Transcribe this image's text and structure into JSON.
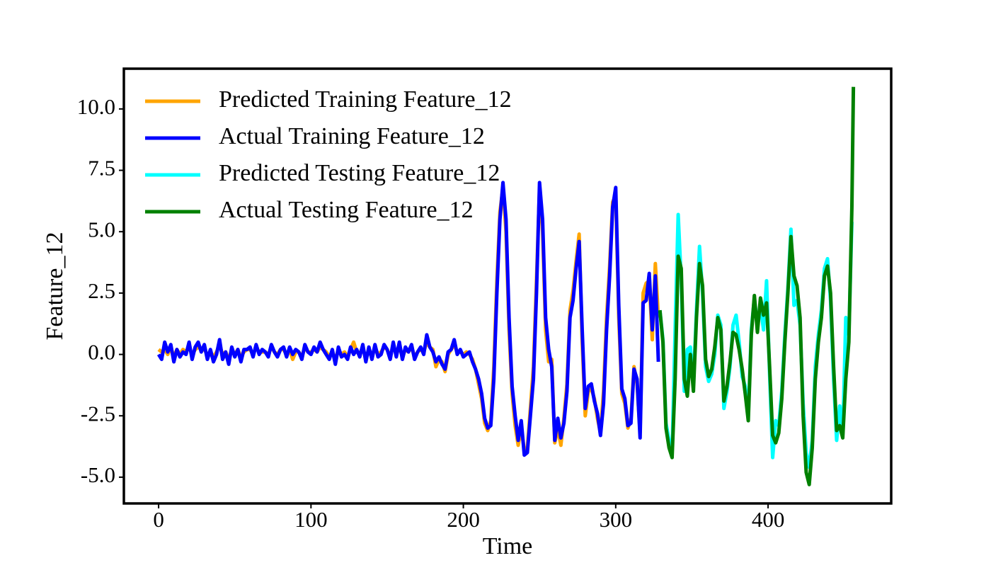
{
  "chart_data": {
    "type": "line",
    "xlabel": "Time",
    "ylabel": "Feature_12",
    "xlim": [
      -22.8,
      480.8
    ],
    "ylim": [
      -6.07,
      11.64
    ],
    "xticks": [
      0,
      100,
      200,
      300,
      400
    ],
    "yticks": [
      {
        "value": 10,
        "label": "10.0"
      },
      7.5,
      {
        "value": 5,
        "label": "5.0"
      },
      2.5,
      {
        "value": 0,
        "label": "0.0"
      },
      -2.5,
      {
        "value": -5,
        "label": "-5.0"
      }
    ],
    "grid": false,
    "legend": "upper left",
    "series": [
      {
        "name": "Predicted Training Feature_12",
        "color": "#ffa500",
        "x": [
          0,
          2,
          4,
          6,
          8,
          10,
          12,
          14,
          16,
          18,
          20,
          22,
          24,
          26,
          28,
          30,
          32,
          34,
          36,
          38,
          40,
          42,
          44,
          46,
          48,
          50,
          52,
          54,
          56,
          58,
          60,
          62,
          64,
          66,
          68,
          70,
          72,
          74,
          76,
          78,
          80,
          82,
          84,
          86,
          88,
          90,
          92,
          94,
          96,
          98,
          100,
          102,
          104,
          106,
          108,
          110,
          112,
          114,
          116,
          118,
          120,
          122,
          124,
          126,
          128,
          130,
          132,
          134,
          136,
          138,
          140,
          142,
          144,
          146,
          148,
          150,
          152,
          154,
          156,
          158,
          160,
          162,
          164,
          166,
          168,
          170,
          172,
          174,
          176,
          178,
          180,
          182,
          184,
          186,
          188,
          190,
          192,
          194,
          196,
          198,
          200,
          202,
          204,
          206,
          208,
          210,
          212,
          214,
          216,
          218,
          220,
          222,
          224,
          226,
          228,
          230,
          232,
          234,
          236,
          238,
          240,
          242,
          244,
          246,
          248,
          250,
          252,
          254,
          256,
          258,
          260,
          262,
          264,
          266,
          268,
          270,
          272,
          274,
          276,
          278,
          280,
          282,
          284,
          286,
          288,
          290,
          292,
          294,
          296,
          298,
          300,
          302,
          304,
          306,
          308,
          310,
          312,
          314,
          316,
          318,
          320,
          322,
          324,
          326,
          328
        ],
        "values": [
          0.2,
          0.1,
          0.2,
          0.0,
          0.3,
          -0.1,
          0.2,
          0.0,
          0.2,
          0.1,
          0.3,
          0.0,
          0.2,
          0.3,
          0.2,
          0.2,
          0.0,
          0.1,
          -0.1,
          0.1,
          0.4,
          0.0,
          0.1,
          -0.2,
          0.2,
          0.0,
          0.2,
          -0.1,
          0.1,
          0.2,
          0.2,
          0.0,
          0.3,
          0.1,
          0.1,
          0.1,
          0.0,
          0.3,
          0.1,
          0.0,
          0.2,
          0.2,
          0.0,
          0.2,
          -0.2,
          0.1,
          0.1,
          -0.1,
          0.3,
          0.1,
          0.1,
          0.2,
          0.1,
          0.3,
          0.2,
          0.1,
          -0.1,
          0.1,
          -0.2,
          0.2,
          0.0,
          0.1,
          -0.1,
          0.2,
          0.5,
          0.1,
          0.0,
          0.3,
          -0.2,
          0.2,
          -0.1,
          0.3,
          0.0,
          0.1,
          0.3,
          0.2,
          -0.1,
          0.4,
          0.0,
          0.3,
          -0.1,
          0.2,
          0.1,
          0.3,
          -0.1,
          0.1,
          0.2,
          0.1,
          0.5,
          0.3,
          0.2,
          -0.5,
          -0.2,
          -0.3,
          -0.7,
          0.0,
          0.2,
          0.4,
          0.1,
          0.1,
          0.0,
          0.1,
          0.0,
          -0.2,
          -0.6,
          -1.2,
          -1.8,
          -2.8,
          -3.1,
          -2.7,
          -0.5,
          3.0,
          5.8,
          6.8,
          5.0,
          1.0,
          -1.6,
          -2.9,
          -3.7,
          -3.0,
          -3.9,
          -3.8,
          -2.2,
          -0.5,
          3.0,
          6.8,
          5.0,
          1.0,
          -0.3,
          -0.2,
          -3.6,
          -3.0,
          -3.7,
          -2.6,
          -1.2,
          1.8,
          2.6,
          3.8,
          4.9,
          0.5,
          -2.5,
          -1.5,
          -1.4,
          -1.8,
          -2.6,
          -3.2,
          -1.5,
          1.5,
          3.6,
          6.2,
          6.5,
          1.5,
          -1.6,
          -2.0,
          -3.0,
          -2.6,
          -0.5,
          -1.2,
          -3.2,
          2.5,
          2.9,
          3.0,
          0.6,
          3.7,
          1.5
        ]
      },
      {
        "name": "Actual Training Feature_12",
        "color": "#0000ff",
        "x": [
          0,
          2,
          4,
          6,
          8,
          10,
          12,
          14,
          16,
          18,
          20,
          22,
          24,
          26,
          28,
          30,
          32,
          34,
          36,
          38,
          40,
          42,
          44,
          46,
          48,
          50,
          52,
          54,
          56,
          58,
          60,
          62,
          64,
          66,
          68,
          70,
          72,
          74,
          76,
          78,
          80,
          82,
          84,
          86,
          88,
          90,
          92,
          94,
          96,
          98,
          100,
          102,
          104,
          106,
          108,
          110,
          112,
          114,
          116,
          118,
          120,
          122,
          124,
          126,
          128,
          130,
          132,
          134,
          136,
          138,
          140,
          142,
          144,
          146,
          148,
          150,
          152,
          154,
          156,
          158,
          160,
          162,
          164,
          166,
          168,
          170,
          172,
          174,
          176,
          178,
          180,
          182,
          184,
          186,
          188,
          190,
          192,
          194,
          196,
          198,
          200,
          202,
          204,
          206,
          208,
          210,
          212,
          214,
          216,
          218,
          220,
          222,
          224,
          226,
          228,
          230,
          232,
          234,
          236,
          238,
          240,
          242,
          244,
          246,
          248,
          250,
          252,
          254,
          256,
          258,
          260,
          262,
          264,
          266,
          268,
          270,
          272,
          274,
          276,
          278,
          280,
          282,
          284,
          286,
          288,
          290,
          292,
          294,
          296,
          298,
          300,
          302,
          304,
          306,
          308,
          310,
          312,
          314,
          316,
          318,
          320,
          322,
          324,
          326,
          328
        ],
        "values": [
          0.0,
          -0.2,
          0.5,
          0.1,
          0.4,
          -0.3,
          0.2,
          -0.1,
          0.1,
          0.0,
          0.5,
          -0.2,
          0.3,
          0.5,
          0.1,
          0.4,
          -0.2,
          0.2,
          -0.3,
          0.0,
          0.6,
          -0.2,
          0.1,
          -0.4,
          0.3,
          -0.1,
          0.2,
          -0.3,
          0.2,
          0.2,
          0.3,
          -0.1,
          0.4,
          0.0,
          0.2,
          0.1,
          -0.1,
          0.4,
          0.1,
          -0.1,
          0.2,
          0.3,
          -0.1,
          0.3,
          0.0,
          0.2,
          0.1,
          -0.2,
          0.4,
          0.1,
          0.0,
          0.3,
          0.1,
          0.5,
          0.2,
          0.0,
          -0.2,
          0.2,
          -0.4,
          0.3,
          -0.1,
          0.0,
          -0.2,
          0.3,
          0.0,
          0.2,
          -0.1,
          0.4,
          -0.3,
          0.3,
          -0.2,
          0.4,
          -0.1,
          0.0,
          0.4,
          0.2,
          -0.2,
          0.5,
          -0.1,
          0.5,
          -0.2,
          0.3,
          0.1,
          0.4,
          -0.2,
          0.1,
          0.3,
          0.0,
          0.8,
          0.3,
          0.1,
          -0.3,
          -0.1,
          -0.4,
          -0.6,
          0.1,
          0.2,
          0.6,
          0.0,
          0.2,
          -0.1,
          0.0,
          0.1,
          -0.3,
          -0.6,
          -1.0,
          -1.6,
          -2.6,
          -3.0,
          -2.9,
          -1.0,
          2.5,
          5.5,
          7.0,
          5.5,
          1.5,
          -1.3,
          -2.5,
          -3.5,
          -2.7,
          -4.1,
          -4.0,
          -2.5,
          -1.0,
          2.5,
          7.0,
          5.5,
          1.5,
          0.2,
          -0.5,
          -3.5,
          -2.6,
          -3.4,
          -2.8,
          -1.5,
          1.5,
          2.2,
          3.5,
          4.6,
          1.0,
          -2.2,
          -1.3,
          -1.2,
          -1.9,
          -2.4,
          -3.3,
          -2.0,
          1.0,
          3.2,
          6.0,
          6.8,
          2.0,
          -1.4,
          -1.8,
          -2.9,
          -2.8,
          -0.6,
          -1.0,
          -3.4,
          2.1,
          2.2,
          3.3,
          1.0,
          3.2,
          -0.3
        ]
      },
      {
        "name": "Predicted Testing Feature_12",
        "color": "#00ffff",
        "x": [
          329,
          331,
          333,
          335,
          337,
          339,
          341,
          343,
          345,
          347,
          349,
          351,
          353,
          355,
          357,
          359,
          361,
          363,
          365,
          367,
          369,
          371,
          373,
          375,
          377,
          379,
          381,
          383,
          385,
          387,
          389,
          391,
          393,
          395,
          397,
          399,
          401,
          403,
          405,
          407,
          409,
          411,
          413,
          415,
          417,
          419,
          421,
          423,
          425,
          427,
          429,
          431,
          433,
          435,
          437,
          439,
          441,
          443,
          445,
          447,
          449,
          451,
          453,
          455
        ],
        "values": [
          1.8,
          0.6,
          -2.8,
          -3.5,
          -4.0,
          1.0,
          5.7,
          3.0,
          -1.5,
          0.2,
          0.3,
          -1.2,
          1.8,
          4.4,
          2.5,
          -0.5,
          -1.1,
          -0.8,
          0.0,
          1.6,
          1.2,
          -2.2,
          -1.5,
          -0.5,
          1.2,
          1.6,
          0.5,
          -0.9,
          -1.3,
          -2.5,
          1.0,
          2.3,
          1.2,
          2.0,
          1.0,
          3.0,
          -0.8,
          -4.2,
          -2.7,
          -2.9,
          -1.5,
          0.8,
          2.7,
          5.1,
          2.0,
          2.2,
          1.2,
          -2.0,
          -4.0,
          -4.6,
          -3.5,
          -0.5,
          0.8,
          1.8,
          3.5,
          3.9,
          2.2,
          -1.0,
          -3.5,
          -2.1,
          -3.3,
          1.5,
          0.8,
          5.4
        ]
      },
      {
        "name": "Actual Testing Feature_12",
        "color": "#008000",
        "x": [
          329,
          331,
          333,
          335,
          337,
          339,
          341,
          343,
          345,
          347,
          349,
          351,
          353,
          355,
          357,
          359,
          361,
          363,
          365,
          367,
          369,
          371,
          373,
          375,
          377,
          379,
          381,
          383,
          385,
          387,
          389,
          391,
          393,
          395,
          397,
          399,
          401,
          403,
          405,
          407,
          409,
          411,
          413,
          415,
          417,
          419,
          421,
          423,
          425,
          427,
          429,
          431,
          433,
          435,
          437,
          439,
          441,
          443,
          445,
          447,
          449,
          451,
          453,
          455,
          456
        ],
        "values": [
          1.8,
          0.5,
          -3.0,
          -3.8,
          -4.2,
          -1.0,
          4.0,
          3.5,
          -1.0,
          -1.7,
          0.0,
          -1.5,
          1.5,
          3.7,
          2.8,
          -0.2,
          -0.9,
          -0.6,
          0.3,
          1.5,
          1.0,
          -1.9,
          -1.3,
          -0.3,
          0.9,
          0.8,
          0.2,
          -0.6,
          -1.6,
          -2.7,
          0.8,
          2.4,
          0.9,
          2.3,
          1.6,
          2.1,
          -0.5,
          -3.3,
          -3.6,
          -3.2,
          -1.8,
          0.5,
          2.5,
          4.8,
          3.2,
          2.8,
          1.5,
          -2.5,
          -4.8,
          -5.3,
          -3.8,
          -1.0,
          0.5,
          1.5,
          3.2,
          3.6,
          2.5,
          -0.5,
          -3.1,
          -2.9,
          -3.4,
          -1.0,
          0.5,
          6.0,
          10.9
        ]
      }
    ]
  }
}
